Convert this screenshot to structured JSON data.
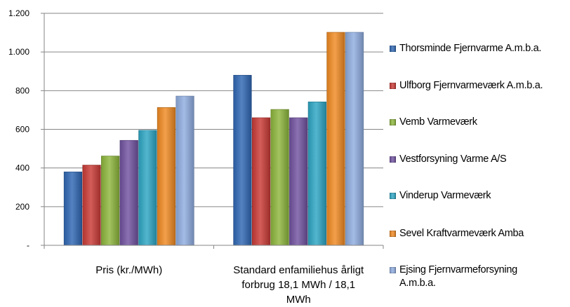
{
  "chart_data": {
    "type": "bar",
    "categories": [
      "Pris (kr./MWh)",
      "Standard enfamiliehus årligt forbrug 18,1 MWh / 18,1 MWh"
    ],
    "category_lines": [
      [
        "Pris (kr./MWh)"
      ],
      [
        "Standard enfamiliehus årligt",
        "forbrug 18,1 MWh / 18,1",
        "MWh"
      ]
    ],
    "series": [
      {
        "name": "Thorsminde Fjernvarme A.m.b.a.",
        "name_lines": [
          "Thorsminde Fjernvarme A.m.b.a."
        ],
        "color": "#2F67B3",
        "values": [
          380,
          880
        ]
      },
      {
        "name": "Ulfborg Fjernvarmeværk A.m.b.a.",
        "name_lines": [
          "Ulfborg Fjernvarmeværk A.m.b.a."
        ],
        "color": "#C93A35",
        "values": [
          415,
          660
        ]
      },
      {
        "name": "Vemb Varmeværk",
        "name_lines": [
          "Vemb Varmeværk"
        ],
        "color": "#8DB63C",
        "values": [
          462,
          703
        ]
      },
      {
        "name": "Vestforsyning Varme A/S",
        "name_lines": [
          "Vestforsyning Varme A/S"
        ],
        "color": "#7152A0",
        "values": [
          543,
          660
        ]
      },
      {
        "name": "Vinderup Varmeværk",
        "name_lines": [
          "Vinderup Varmeværk"
        ],
        "color": "#2DA6C4",
        "values": [
          595,
          742
        ]
      },
      {
        "name": "Sevel Kraftvarmeværk Amba",
        "name_lines": [
          "Sevel Kraftvarmeværk Amba"
        ],
        "color": "#F08A22",
        "values": [
          713,
          1102
        ]
      },
      {
        "name": "Ejsing Fjernvarmeforsyning A.m.b.a.",
        "name_lines": [
          "Ejsing Fjernvarmeforsyning",
          "A.m.b.a."
        ],
        "color": "#8FADE0",
        "values": [
          772,
          1102
        ]
      }
    ],
    "yticks": [
      0,
      200,
      400,
      600,
      800,
      1000,
      1200
    ],
    "ytick_labels": [
      "-",
      "200",
      "400",
      "600",
      "800",
      "1.000",
      "1.200"
    ],
    "ylim": [
      0,
      1200
    ],
    "grid": true,
    "legend_position": "right"
  }
}
